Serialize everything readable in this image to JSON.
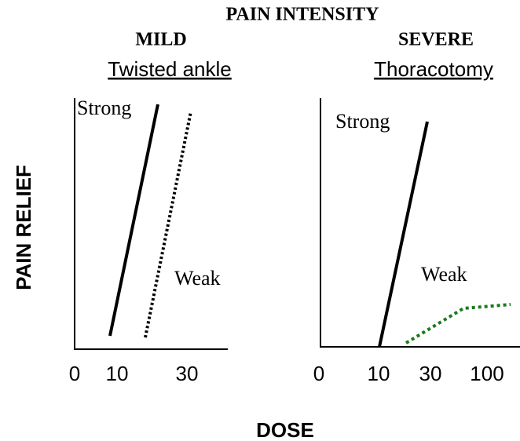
{
  "title": "PAIN INTENSITY",
  "y_label": "PAIN RELIEF",
  "x_label": "DOSE",
  "panels": [
    {
      "heading": "MILD",
      "subheading": "Twisted ankle",
      "strong_label": "Strong",
      "weak_label": "Weak",
      "ticks": [
        "0",
        "10",
        "30"
      ]
    },
    {
      "heading": "SEVERE",
      "subheading": "Thoracotomy",
      "strong_label": "Strong",
      "weak_label": "Weak",
      "ticks": [
        "0",
        "10",
        "30",
        "100"
      ]
    }
  ]
}
